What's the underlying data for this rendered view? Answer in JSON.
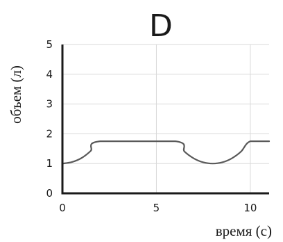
{
  "chart_data": {
    "type": "line",
    "title": "D",
    "xlabel": "время (с)",
    "ylabel": "объем (л)",
    "xlim": [
      0,
      11
    ],
    "ylim": [
      0,
      5
    ],
    "x_ticks": [
      "0",
      "5",
      "10"
    ],
    "y_ticks": [
      "0",
      "1",
      "2",
      "3",
      "4",
      "5"
    ],
    "grid": true,
    "series": [
      {
        "color": "#595959",
        "x": [
          0,
          0.5,
          1.0,
          1.5,
          2.0,
          6.0,
          6.5,
          7.0,
          7.5,
          8.0,
          8.5,
          9.0,
          9.5,
          10.0,
          11.0
        ],
        "y": [
          1.0,
          1.05,
          1.18,
          1.42,
          1.75,
          1.75,
          1.4,
          1.17,
          1.04,
          1.0,
          1.04,
          1.17,
          1.4,
          1.75,
          1.75
        ]
      }
    ]
  }
}
